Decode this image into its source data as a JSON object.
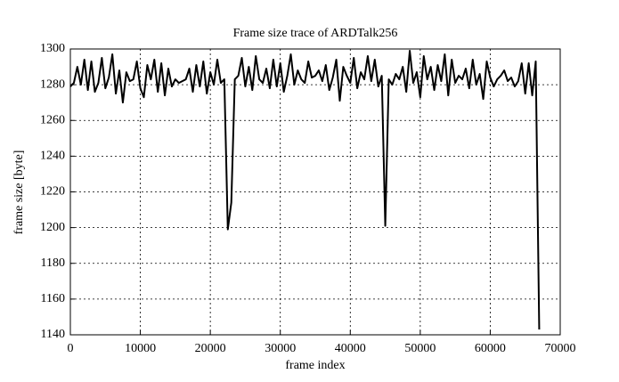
{
  "chart_data": {
    "type": "line",
    "title": "Frame size trace of ARDTalk256",
    "x_label": "frame index",
    "y_label": "frame size [byte]",
    "x": [
      0,
      500,
      1000,
      1500,
      2000,
      2500,
      3000,
      3500,
      4000,
      4500,
      5000,
      5500,
      6000,
      6500,
      7000,
      7500,
      8000,
      8500,
      9000,
      9500,
      10000,
      10500,
      11000,
      11500,
      12000,
      12500,
      13000,
      13500,
      14000,
      14500,
      15000,
      15500,
      16000,
      16500,
      17000,
      17500,
      18000,
      18500,
      19000,
      19500,
      20000,
      20500,
      21000,
      21500,
      22000,
      22500,
      23000,
      23500,
      24000,
      24500,
      25000,
      25500,
      26000,
      26500,
      27000,
      27500,
      28000,
      28500,
      29000,
      29500,
      30000,
      30500,
      31000,
      31500,
      32000,
      32500,
      33000,
      33500,
      34000,
      34500,
      35000,
      35500,
      36000,
      36500,
      37000,
      37500,
      38000,
      38500,
      39000,
      39500,
      40000,
      40500,
      41000,
      41500,
      42000,
      42500,
      43000,
      43500,
      44000,
      44500,
      45000,
      45500,
      46000,
      46500,
      47000,
      47500,
      48000,
      48500,
      49000,
      49500,
      50000,
      50500,
      51000,
      51500,
      52000,
      52500,
      53000,
      53500,
      54000,
      54500,
      55000,
      55500,
      56000,
      56500,
      57000,
      57500,
      58000,
      58500,
      59000,
      59500,
      60000,
      60500,
      61000,
      61500,
      62000,
      62500,
      63000,
      63500,
      64000,
      64500,
      65000,
      65500,
      66000,
      66500,
      67000
    ],
    "series": [
      {
        "name": "ARDTalk256",
        "color": "#000000",
        "values": [
          1279,
          1281,
          1290,
          1280,
          1294,
          1277,
          1293,
          1276,
          1281,
          1295,
          1278,
          1284,
          1297,
          1275,
          1288,
          1270,
          1287,
          1282,
          1283,
          1293,
          1278,
          1273,
          1291,
          1283,
          1294,
          1276,
          1292,
          1274,
          1289,
          1279,
          1283,
          1281,
          1282,
          1283,
          1289,
          1276,
          1291,
          1279,
          1293,
          1275,
          1287,
          1280,
          1294,
          1281,
          1283,
          1199,
          1214,
          1283,
          1285,
          1295,
          1279,
          1290,
          1277,
          1296,
          1283,
          1281,
          1289,
          1278,
          1294,
          1279,
          1292,
          1276,
          1285,
          1297,
          1280,
          1288,
          1283,
          1281,
          1293,
          1284,
          1285,
          1288,
          1282,
          1291,
          1277,
          1284,
          1294,
          1271,
          1290,
          1285,
          1281,
          1295,
          1278,
          1287,
          1283,
          1296,
          1282,
          1294,
          1279,
          1285,
          1201,
          1283,
          1280,
          1286,
          1283,
          1290,
          1276,
          1299,
          1281,
          1287,
          1273,
          1296,
          1283,
          1290,
          1277,
          1291,
          1282,
          1297,
          1274,
          1294,
          1281,
          1285,
          1283,
          1289,
          1278,
          1294,
          1280,
          1286,
          1272,
          1293,
          1284,
          1279,
          1283,
          1285,
          1288,
          1282,
          1284,
          1279,
          1282,
          1292,
          1275,
          1292,
          1274,
          1293,
          1143
        ]
      }
    ],
    "xlim": [
      0,
      70000
    ],
    "xticks": [
      0,
      10000,
      20000,
      30000,
      40000,
      50000,
      60000,
      70000
    ],
    "ylim": [
      1140,
      1300
    ],
    "yticks": [
      1140,
      1160,
      1180,
      1200,
      1220,
      1240,
      1260,
      1280,
      1300
    ],
    "grid": true
  }
}
